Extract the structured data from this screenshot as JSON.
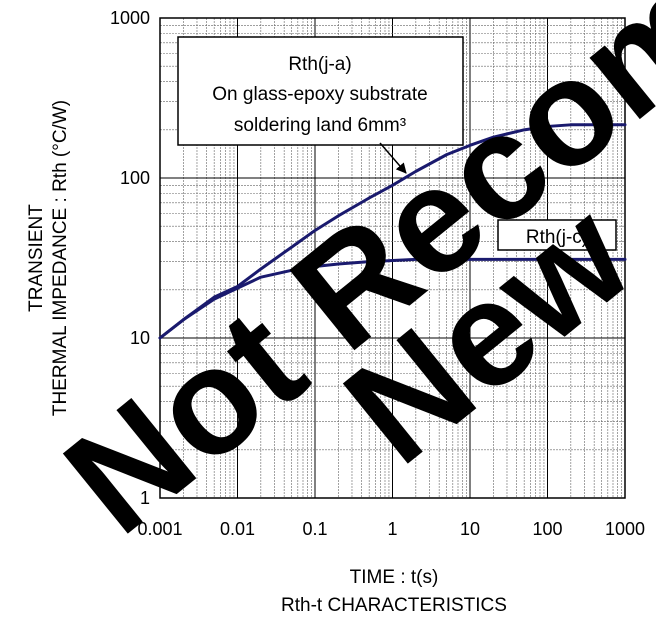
{
  "chart_data": {
    "type": "line",
    "title": "",
    "subtitle": "Rth-t CHARACTERISTICS",
    "xlabel": "TIME : t(s)",
    "ylabel_lines": [
      "TRANSIENT",
      "THERMAL IMPEDANCE : Rth (°C/W)"
    ],
    "xscale": "log",
    "yscale": "log",
    "xlim": [
      0.001,
      1000
    ],
    "ylim": [
      1,
      1000
    ],
    "grid": true,
    "x_ticks": [
      "0.001",
      "0.01",
      "0.1",
      "1",
      "10",
      "100",
      "1000"
    ],
    "y_ticks": [
      "1",
      "10",
      "100",
      "1000"
    ],
    "series": [
      {
        "name": "Rth(j-a)",
        "color": "#1a1a6e",
        "x": [
          0.001,
          0.002,
          0.005,
          0.01,
          0.02,
          0.05,
          0.1,
          0.2,
          0.5,
          1,
          2,
          5,
          10,
          20,
          50,
          100,
          200,
          500,
          1000
        ],
        "y": [
          10,
          13,
          18,
          21,
          27,
          37,
          47,
          58,
          75,
          90,
          110,
          140,
          160,
          180,
          200,
          210,
          215,
          215,
          215
        ]
      },
      {
        "name": "Rth(j-c)",
        "color": "#1a1a6e",
        "x": [
          0.001,
          0.002,
          0.005,
          0.01,
          0.02,
          0.05,
          0.1,
          0.2,
          0.5,
          1,
          2,
          5,
          10,
          20,
          50,
          100,
          200,
          500,
          1000
        ],
        "y": [
          10,
          13,
          17.5,
          20.5,
          24,
          26.5,
          28,
          29,
          30,
          30.5,
          31,
          31,
          31,
          31,
          31,
          31,
          31,
          31,
          31
        ]
      }
    ],
    "annotations": [
      {
        "target": "Rth(j-a)",
        "lines": [
          "Rth(j-a)",
          "On glass-epoxy substrate",
          "soldering land 6mm³"
        ]
      },
      {
        "target": "Rth(j-c)",
        "lines": [
          "Rth(j-c)"
        ]
      }
    ],
    "watermark": [
      "Not Recommended",
      "New"
    ]
  }
}
